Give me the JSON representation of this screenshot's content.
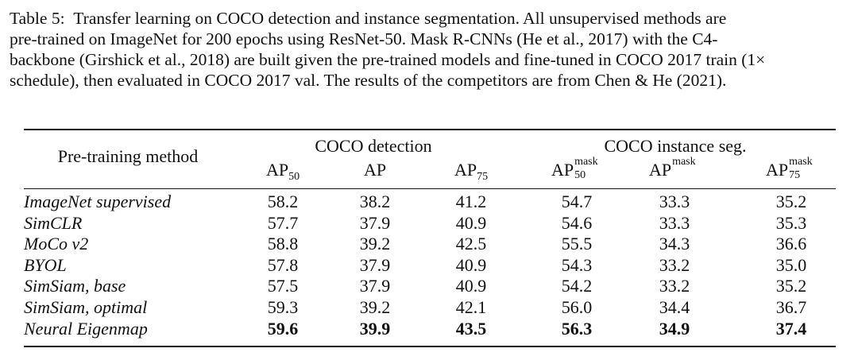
{
  "caption": {
    "label": "Table 5:",
    "lines": [
      "Transfer learning on COCO detection and instance segmentation.  All unsupervised methods are",
      "pre-trained on ImageNet for 200 epochs using ResNet-50.  Mask R-CNNs (He et al., 2017) with the C4-",
      "backbone (Girshick et al., 2018) are built given the pre-trained models and fine-tuned in COCO 2017 train (1×",
      "schedule), then evaluated in COCO 2017 val. The results of the competitors are from Chen & He (2021)."
    ]
  },
  "table": {
    "method_header": "Pre-training method",
    "groups": [
      "COCO detection",
      "COCO instance seg."
    ],
    "columns": [
      {
        "base": "AP",
        "sub": "50",
        "sup": ""
      },
      {
        "base": "AP",
        "sub": "",
        "sup": ""
      },
      {
        "base": "AP",
        "sub": "75",
        "sup": ""
      },
      {
        "base": "AP",
        "sub": "50",
        "sup": "mask"
      },
      {
        "base": "AP",
        "sub": "",
        "sup": "mask"
      },
      {
        "base": "AP",
        "sub": "75",
        "sup": "mask"
      }
    ],
    "rows": [
      {
        "method": "ImageNet supervised",
        "values": [
          "58.2",
          "38.2",
          "41.2",
          "54.7",
          "33.3",
          "35.2"
        ],
        "bold": false
      },
      {
        "method": "SimCLR",
        "values": [
          "57.7",
          "37.9",
          "40.9",
          "54.6",
          "33.3",
          "35.3"
        ],
        "bold": false
      },
      {
        "method": "MoCo v2",
        "values": [
          "58.8",
          "39.2",
          "42.5",
          "55.5",
          "34.3",
          "36.6"
        ],
        "bold": false
      },
      {
        "method": "BYOL",
        "values": [
          "57.8",
          "37.9",
          "40.9",
          "54.3",
          "33.2",
          "35.0"
        ],
        "bold": false
      },
      {
        "method": "SimSiam, base",
        "values": [
          "57.5",
          "37.9",
          "40.9",
          "54.2",
          "33.2",
          "35.2"
        ],
        "bold": false
      },
      {
        "method": "SimSiam, optimal",
        "values": [
          "59.3",
          "39.2",
          "42.1",
          "56.0",
          "34.4",
          "36.7"
        ],
        "bold": false
      },
      {
        "method": "Neural Eigenmap",
        "values": [
          "59.6",
          "39.9",
          "43.5",
          "56.3",
          "34.9",
          "37.4"
        ],
        "bold": true
      }
    ]
  }
}
